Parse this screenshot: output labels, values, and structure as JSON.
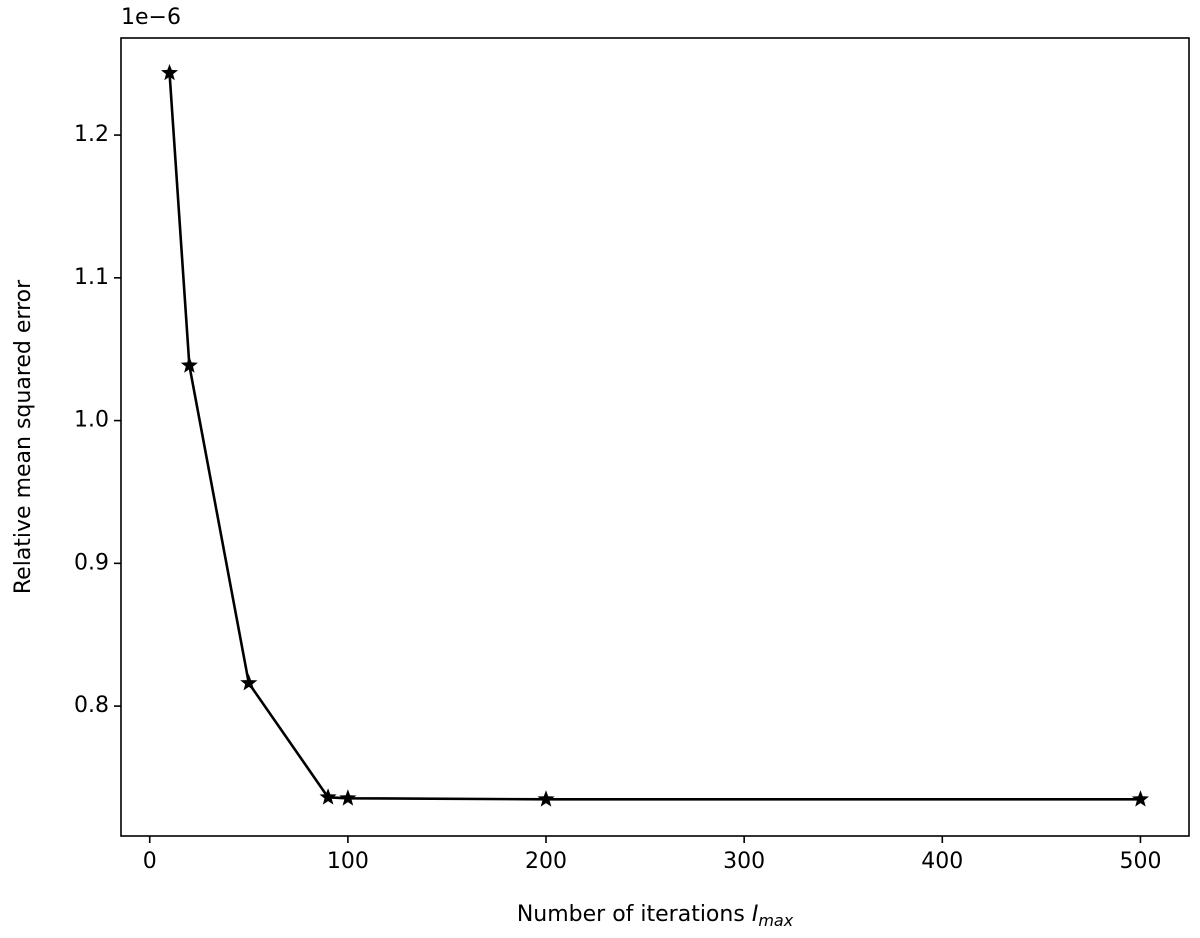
{
  "chart_data": {
    "type": "line",
    "offset_text": "1e−6",
    "xlabel": {
      "text": "Number of iterations",
      "symbol": "I",
      "subscript": "max"
    },
    "ylabel": "Relative mean squared error",
    "x": [
      10,
      20,
      50,
      90,
      100,
      200,
      500
    ],
    "series": [
      {
        "color": "#000000",
        "marker": "star",
        "values": [
          1.2435,
          1.0386,
          0.8161,
          0.7361,
          0.7354,
          0.7347,
          0.7347
        ]
      }
    ],
    "xlim": [
      -14.5,
      524.5
    ],
    "xticks": [
      0,
      100,
      200,
      300,
      400,
      500
    ],
    "ylim": [
      0.709,
      1.268
    ],
    "yticks": [
      0.8,
      0.9,
      {
        "value": 1.0,
        "label": "1.0"
      },
      1.1,
      1.2
    ],
    "grid": false
  }
}
